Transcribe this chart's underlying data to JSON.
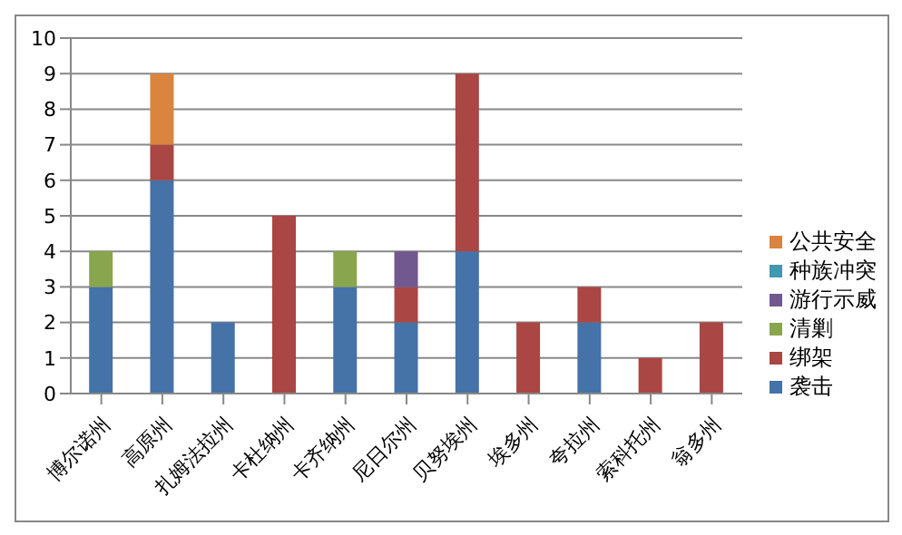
{
  "chart_data": {
    "type": "bar",
    "stacked": true,
    "categories": [
      "博尔诺州",
      "高原州",
      "扎姆法拉州",
      "卡杜纳州",
      "卡齐纳州",
      "尼日尔州",
      "贝努埃州",
      "埃多州",
      "夸拉州",
      "索科托州",
      "翁多州"
    ],
    "series": [
      {
        "name": "袭击",
        "color": "#4572a7",
        "values": [
          3,
          6,
          2,
          0,
          3,
          2,
          4,
          0,
          2,
          0,
          0
        ]
      },
      {
        "name": "绑架",
        "color": "#aa4643",
        "values": [
          0,
          1,
          0,
          5,
          0,
          1,
          5,
          2,
          1,
          1,
          2
        ]
      },
      {
        "name": "清剿",
        "color": "#89a54e",
        "values": [
          1,
          0,
          0,
          0,
          1,
          0,
          0,
          0,
          0,
          0,
          0
        ]
      },
      {
        "name": "游行示威",
        "color": "#71588f",
        "values": [
          0,
          0,
          0,
          0,
          0,
          1,
          0,
          0,
          0,
          0,
          0
        ]
      },
      {
        "name": "种族冲突",
        "color": "#4198af",
        "values": [
          0,
          0,
          0,
          0,
          0,
          0,
          0,
          0,
          0,
          0,
          0
        ]
      },
      {
        "name": "公共安全",
        "color": "#db843d",
        "values": [
          0,
          2,
          0,
          0,
          0,
          0,
          0,
          0,
          0,
          0,
          0
        ]
      }
    ],
    "ylim": [
      0,
      10
    ],
    "yticks": [
      0,
      1,
      2,
      3,
      4,
      5,
      6,
      7,
      8,
      9,
      10
    ],
    "grid": "y",
    "legend": "right"
  }
}
